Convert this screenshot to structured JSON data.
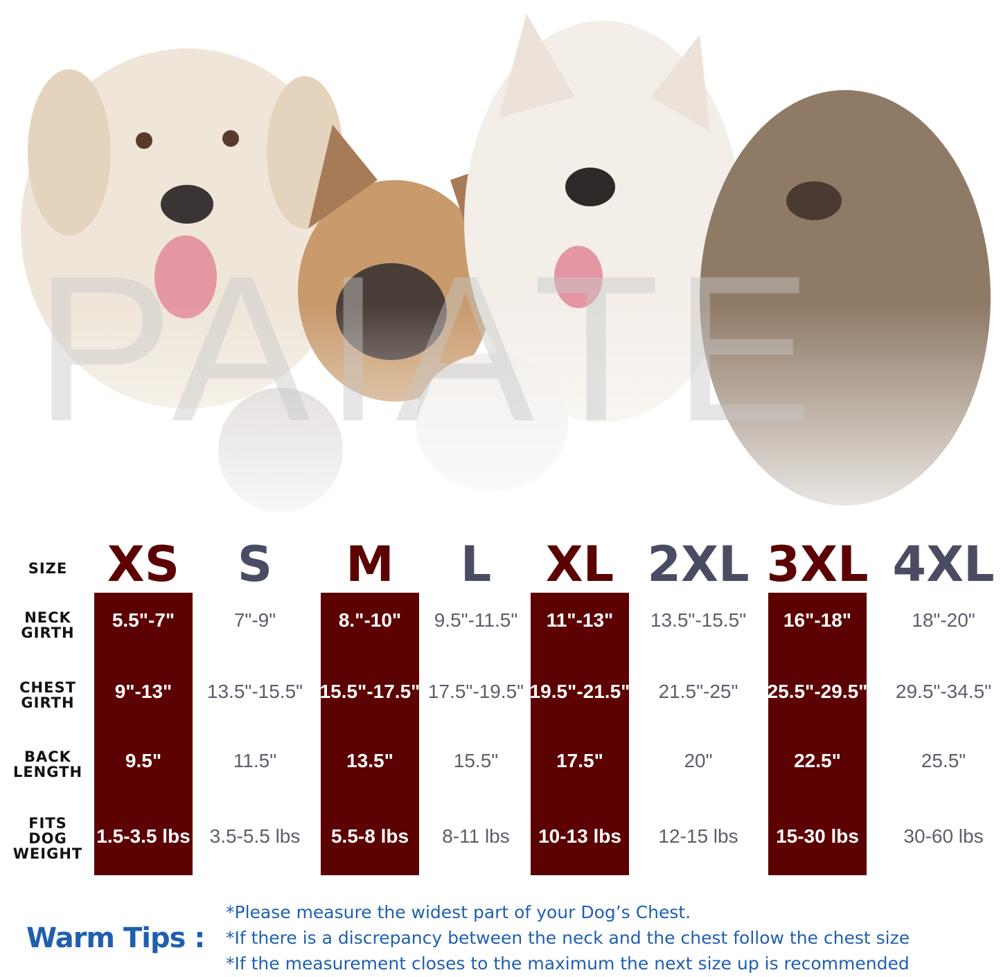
{
  "watermark": "PAIATE",
  "colors": {
    "highlight": "#5c0202",
    "muted_text": "#5b5d6b",
    "size_alt": "#4a4c63",
    "tips": "#1f5fae"
  },
  "table": {
    "row_labels": {
      "size": "SIZE",
      "neck": [
        "NECK",
        "GIRTH"
      ],
      "chest": [
        "CHEST",
        "GIRTH"
      ],
      "back": [
        "BACK",
        "LENGTH"
      ],
      "weight": [
        "FITS",
        "DOG",
        "WEIGHT"
      ]
    },
    "columns": [
      {
        "size": "XS",
        "neck": "5.5\"-7\"",
        "chest": "9\"-13\"",
        "back": "9.5\"",
        "weight": "1.5-3.5 lbs",
        "highlighted": true
      },
      {
        "size": "S",
        "neck": "7\"-9\"",
        "chest": "13.5\"-15.5\"",
        "back": "11.5\"",
        "weight": "3.5-5.5 lbs",
        "highlighted": false
      },
      {
        "size": "M",
        "neck": "8.\"-10\"",
        "chest": "15.5\"-17.5\"",
        "back": "13.5\"",
        "weight": "5.5-8 lbs",
        "highlighted": true
      },
      {
        "size": "L",
        "neck": "9.5\"-11.5\"",
        "chest": "17.5\"-19.5\"",
        "back": "15.5\"",
        "weight": "8-11 lbs",
        "highlighted": false
      },
      {
        "size": "XL",
        "neck": "11\"-13\"",
        "chest": "19.5\"-21.5\"",
        "back": "17.5\"",
        "weight": "10-13 lbs",
        "highlighted": true
      },
      {
        "size": "2XL",
        "neck": "13.5\"-15.5\"",
        "chest": "21.5\"-25\"",
        "back": "20\"",
        "weight": "12-15 lbs",
        "highlighted": false
      },
      {
        "size": "3XL",
        "neck": "16\"-18\"",
        "chest": "25.5\"-29.5\"",
        "back": "22.5\"",
        "weight": "15-30 lbs",
        "highlighted": true
      },
      {
        "size": "4XL",
        "neck": "18\"-20\"",
        "chest": "29.5\"-34.5\"",
        "back": "25.5\"",
        "weight": "30-60 lbs",
        "highlighted": false
      }
    ]
  },
  "tips": {
    "title": "Warm Tips :",
    "items": [
      "*Please measure the widest part of your Dog’s Chest.",
      "*If there is a discrepancy between the neck and the chest  follow the chest size",
      "*If the measurement closes to the maximum the next size up is recommended"
    ]
  }
}
